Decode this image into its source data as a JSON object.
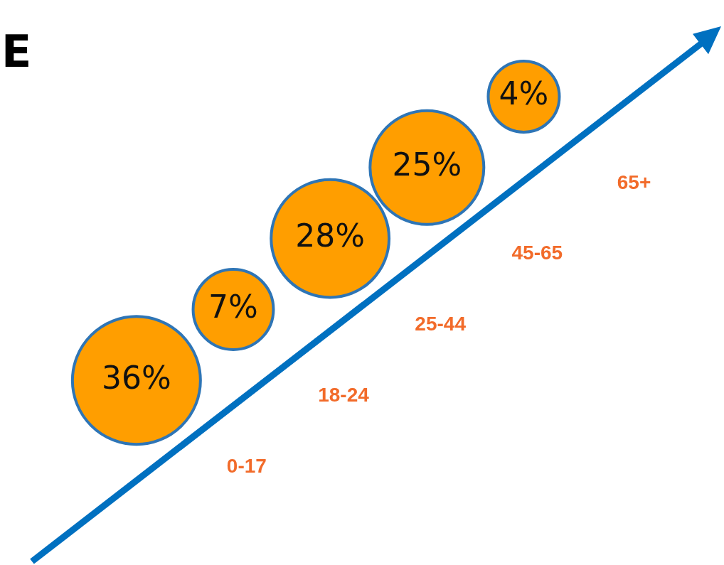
{
  "chart_data": {
    "type": "other",
    "title": "E",
    "categories": [
      "0-17",
      "18-24",
      "25-44",
      "45-65",
      "65+"
    ],
    "values": [
      36,
      7,
      28,
      25,
      4
    ],
    "value_labels": [
      "36%",
      "7%",
      "28%",
      "25%",
      "4%"
    ],
    "color": "#ff9e00"
  }
}
